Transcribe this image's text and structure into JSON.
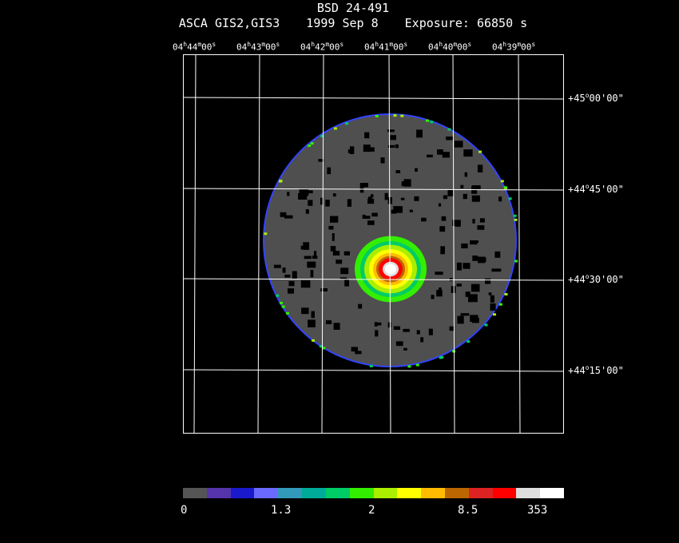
{
  "header": {
    "object": "BSD 24-491",
    "instrument": "ASCA GIS2,GIS3",
    "date": "1999 Sep  8",
    "exposure": "Exposure: 66850 s"
  },
  "ra_ticks": [
    {
      "h": "04",
      "m": "44",
      "s": "00"
    },
    {
      "h": "04",
      "m": "43",
      "s": "00"
    },
    {
      "h": "04",
      "m": "42",
      "s": "00"
    },
    {
      "h": "04",
      "m": "41",
      "s": "00"
    },
    {
      "h": "04",
      "m": "40",
      "s": "00"
    },
    {
      "h": "04",
      "m": "39",
      "s": "00"
    }
  ],
  "dec_ticks": [
    {
      "d": "+45",
      "m": "00",
      "s": "00"
    },
    {
      "d": "+44",
      "m": "45",
      "s": "00"
    },
    {
      "d": "+44",
      "m": "30",
      "s": "00"
    },
    {
      "d": "+44",
      "m": "15",
      "s": "00"
    }
  ],
  "colorbar": {
    "labels": [
      "0",
      "1.3",
      "2",
      "8.5",
      "353"
    ],
    "colors": [
      "#555555",
      "#5533aa",
      "#1a1acc",
      "#6a6aff",
      "#3399bb",
      "#00aa99",
      "#00cc66",
      "#33ee00",
      "#aaee00",
      "#ffff00",
      "#ffbb00",
      "#bb6600",
      "#dd2222",
      "#ff0000",
      "#dddddd",
      "#ffffff"
    ]
  },
  "colors": {
    "background": "#000000",
    "field": "#4f4f4f",
    "rim": "#3344ff",
    "grid": "#ffffff"
  }
}
